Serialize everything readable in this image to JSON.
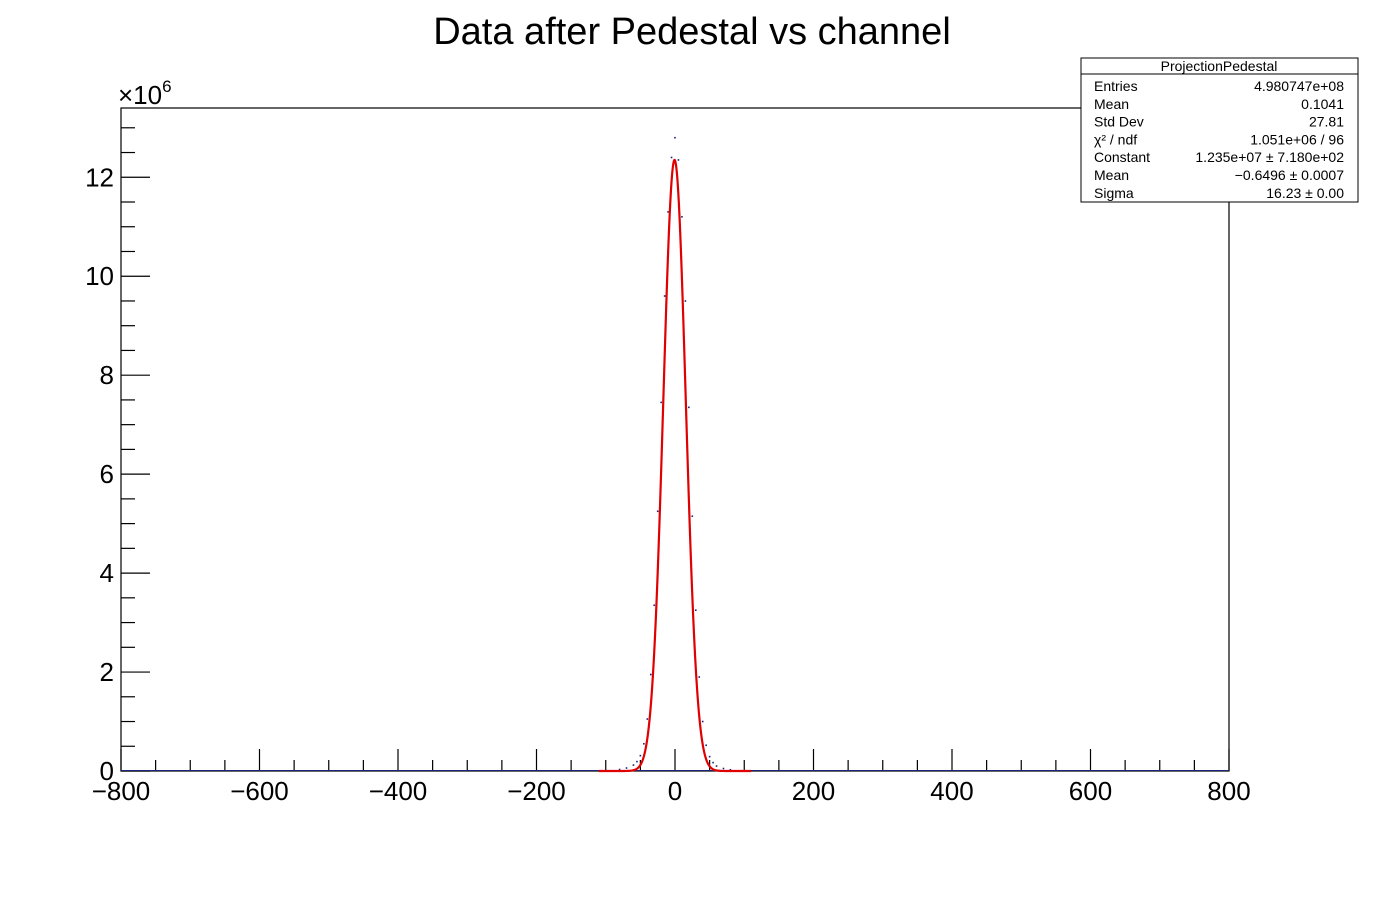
{
  "chart_data": {
    "type": "histogram",
    "title": "Data after Pedestal vs channel",
    "xlabel": "",
    "ylabel": "",
    "y_multiplier_label": "×10",
    "y_multiplier_exponent": "6",
    "xlim": [
      -800,
      800
    ],
    "ylim": [
      0,
      13.4
    ],
    "x_ticks": [
      -800,
      -600,
      -400,
      -200,
      0,
      200,
      400,
      600,
      800
    ],
    "x_tick_labels": [
      "−800",
      "−600",
      "−400",
      "−200",
      "0",
      "200",
      "400",
      "600",
      "800"
    ],
    "y_ticks": [
      0,
      2,
      4,
      6,
      8,
      10,
      12
    ],
    "y_tick_labels": [
      "0",
      "2",
      "4",
      "6",
      "8",
      "10",
      "12"
    ],
    "data_color": "#1a237e",
    "fit_color": "#e00000",
    "series": [
      {
        "kind": "points",
        "x": [
          -100,
          -80,
          -70,
          -60,
          -55,
          -50,
          -45,
          -40,
          -35,
          -30,
          -25,
          -20,
          -15,
          -10,
          -5,
          0,
          5,
          10,
          15,
          20,
          25,
          30,
          35,
          40,
          45,
          50,
          55,
          60,
          70,
          80,
          100
        ],
        "y": [
          0.01,
          0.03,
          0.06,
          0.12,
          0.19,
          0.31,
          0.55,
          1.05,
          1.95,
          3.35,
          5.25,
          7.45,
          9.6,
          11.3,
          12.4,
          12.8,
          12.35,
          11.2,
          9.5,
          7.35,
          5.15,
          3.25,
          1.9,
          1.0,
          0.52,
          0.29,
          0.17,
          0.1,
          0.05,
          0.025,
          0.01
        ]
      },
      {
        "kind": "gaussian-fit",
        "constant": 12.35,
        "mean": -0.6496,
        "sigma": 16.23
      }
    ]
  },
  "stats_box": {
    "title": "ProjectionPedestal",
    "rows": [
      {
        "label": "Entries",
        "value": "4.980747e+08"
      },
      {
        "label": "Mean",
        "value": "0.1041"
      },
      {
        "label": "Std Dev",
        "value": "27.81"
      },
      {
        "label": "χ² / ndf",
        "value": "1.051e+06 / 96"
      },
      {
        "label": "Constant",
        "value": "1.235e+07 ± 7.180e+02"
      },
      {
        "label": "Mean",
        "value": "−0.6496 ± 0.0007"
      },
      {
        "label": "Sigma",
        "value": "16.23 ± 0.00"
      }
    ]
  }
}
